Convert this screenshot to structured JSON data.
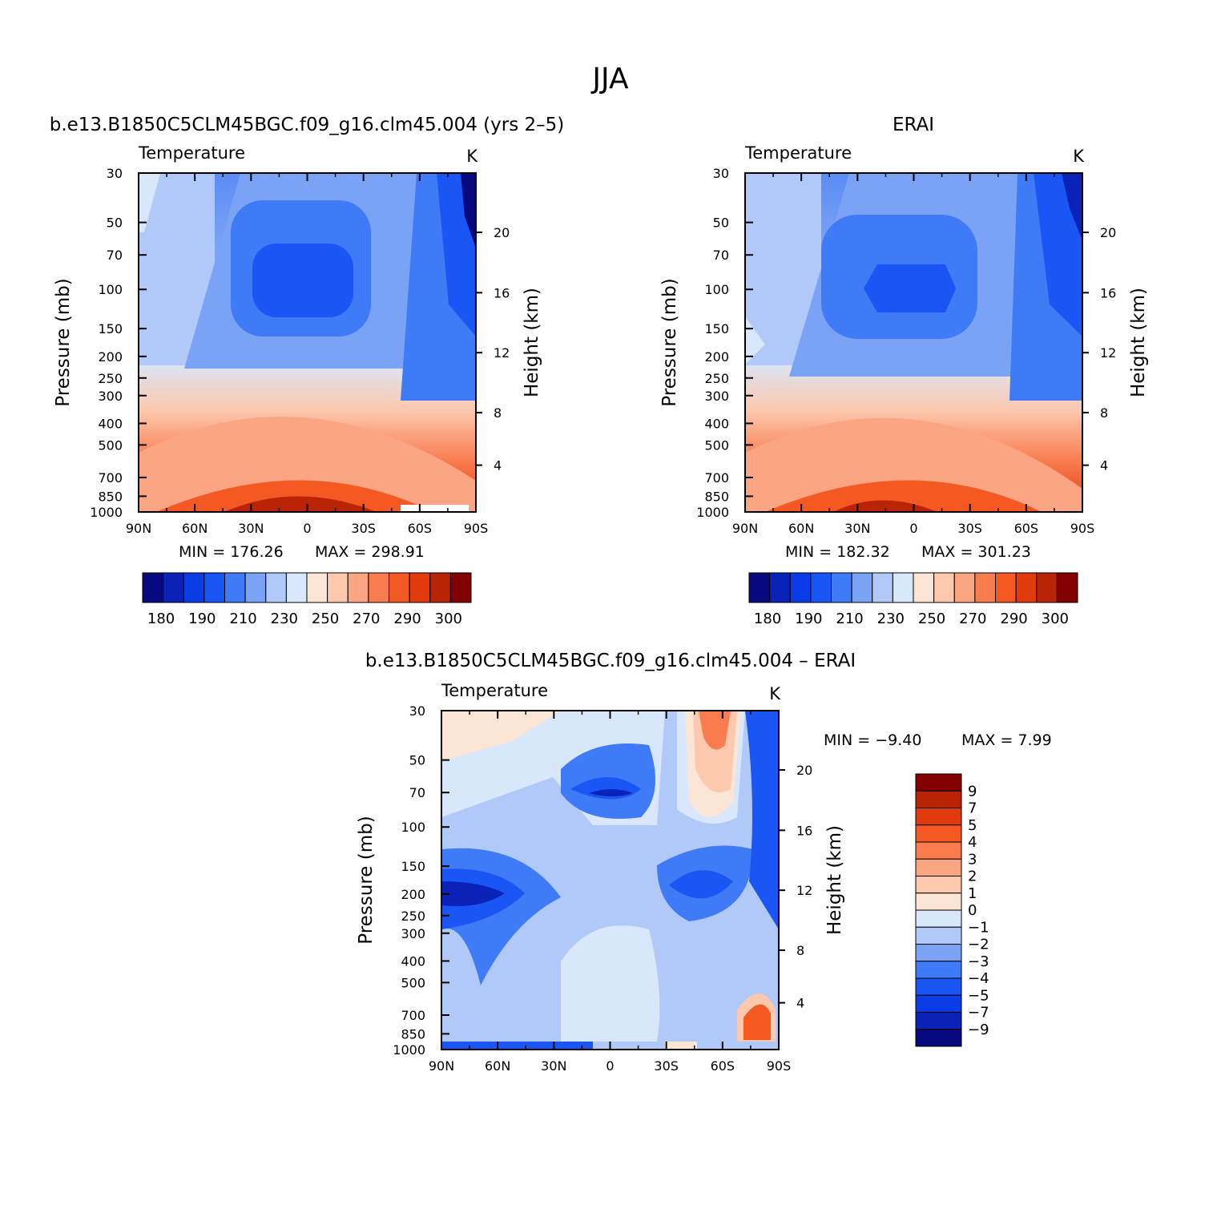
{
  "figure_title": "JJA",
  "chart_data": [
    {
      "type": "contour",
      "title": "b.e13.B1850C5CLM45BGC.f09_g16.clm45.004 (yrs 2–5)",
      "left_label": "Temperature",
      "units": "K",
      "ylabel": "Pressure (mb)",
      "ylabel2": "Height (km)",
      "x_ticks": [
        "90N",
        "60N",
        "30N",
        "0",
        "30S",
        "60S",
        "90S"
      ],
      "x_values": [
        90,
        60,
        30,
        0,
        -30,
        -60,
        -90
      ],
      "xlim": [
        90,
        -90
      ],
      "y_ticks": [
        "30",
        "50",
        "70",
        "100",
        "150",
        "200",
        "250",
        "300",
        "400",
        "500",
        "700",
        "850",
        "1000"
      ],
      "y_values": [
        30,
        50,
        70,
        100,
        150,
        200,
        250,
        300,
        400,
        500,
        700,
        850,
        1000
      ],
      "ylim": [
        1000,
        30
      ],
      "yscale": "log",
      "y2_ticks": [
        "20",
        "16",
        "12",
        "8",
        "4"
      ],
      "min_label": "MIN = 176.26",
      "max_label": "MAX = 298.91",
      "colorbar": {
        "orientation": "horizontal",
        "labels": [
          "180",
          "190",
          "210",
          "230",
          "250",
          "270",
          "290",
          "300"
        ],
        "colors": [
          "#08087f",
          "#0a22b8",
          "#0a3de6",
          "#1a55f5",
          "#3f7af7",
          "#7aa3f5",
          "#b0c9f8",
          "#d8e7fb",
          "#fde5d6",
          "#fcc8ae",
          "#fba583",
          "#f97c4f",
          "#f45823",
          "#e03a0d",
          "#b82405",
          "#830000"
        ]
      }
    },
    {
      "type": "contour",
      "title": "ERAI",
      "left_label": "Temperature",
      "units": "K",
      "ylabel": "Pressure (mb)",
      "ylabel2": "Height (km)",
      "x_ticks": [
        "90N",
        "60N",
        "30N",
        "0",
        "30S",
        "60S",
        "90S"
      ],
      "x_values": [
        90,
        60,
        30,
        0,
        -30,
        -60,
        -90
      ],
      "xlim": [
        90,
        -90
      ],
      "y_ticks": [
        "30",
        "50",
        "70",
        "100",
        "150",
        "200",
        "250",
        "300",
        "400",
        "500",
        "700",
        "850",
        "1000"
      ],
      "y_values": [
        30,
        50,
        70,
        100,
        150,
        200,
        250,
        300,
        400,
        500,
        700,
        850,
        1000
      ],
      "ylim": [
        1000,
        30
      ],
      "yscale": "log",
      "y2_ticks": [
        "20",
        "16",
        "12",
        "8",
        "4"
      ],
      "min_label": "MIN = 182.32",
      "max_label": "MAX = 301.23",
      "colorbar": {
        "orientation": "horizontal",
        "labels": [
          "180",
          "190",
          "210",
          "230",
          "250",
          "270",
          "290",
          "300"
        ],
        "colors": [
          "#08087f",
          "#0a22b8",
          "#0a3de6",
          "#1a55f5",
          "#3f7af7",
          "#7aa3f5",
          "#b0c9f8",
          "#d8e7fb",
          "#fde5d6",
          "#fcc8ae",
          "#fba583",
          "#f97c4f",
          "#f45823",
          "#e03a0d",
          "#b82405",
          "#830000"
        ]
      }
    },
    {
      "type": "contour",
      "title": "b.e13.B1850C5CLM45BGC.f09_g16.clm45.004 – ERAI",
      "left_label": "Temperature",
      "units": "K",
      "ylabel": "Pressure (mb)",
      "ylabel2": "Height (km)",
      "x_ticks": [
        "90N",
        "60N",
        "30N",
        "0",
        "30S",
        "60S",
        "90S"
      ],
      "x_values": [
        90,
        60,
        30,
        0,
        -30,
        -60,
        -90
      ],
      "xlim": [
        90,
        -90
      ],
      "y_ticks": [
        "30",
        "50",
        "70",
        "100",
        "150",
        "200",
        "250",
        "300",
        "400",
        "500",
        "700",
        "850",
        "1000"
      ],
      "y_values": [
        30,
        50,
        70,
        100,
        150,
        200,
        250,
        300,
        400,
        500,
        700,
        850,
        1000
      ],
      "ylim": [
        1000,
        30
      ],
      "yscale": "log",
      "y2_ticks": [
        "20",
        "16",
        "12",
        "8",
        "4"
      ],
      "min_label": "MIN =   −9.40",
      "max_label": "MAX =    7.99",
      "colorbar": {
        "orientation": "vertical",
        "labels": [
          "9",
          "7",
          "5",
          "4",
          "3",
          "2",
          "1",
          "0",
          "−1",
          "−2",
          "−3",
          "−4",
          "−5",
          "−7",
          "−9"
        ],
        "colors": [
          "#830000",
          "#b82405",
          "#e03a0d",
          "#f45823",
          "#f97c4f",
          "#fba583",
          "#fcc8ae",
          "#fde5d6",
          "#d8e7fb",
          "#b0c9f8",
          "#7aa3f5",
          "#3f7af7",
          "#1a55f5",
          "#0a3de6",
          "#0a22b8",
          "#08087f"
        ]
      }
    }
  ]
}
